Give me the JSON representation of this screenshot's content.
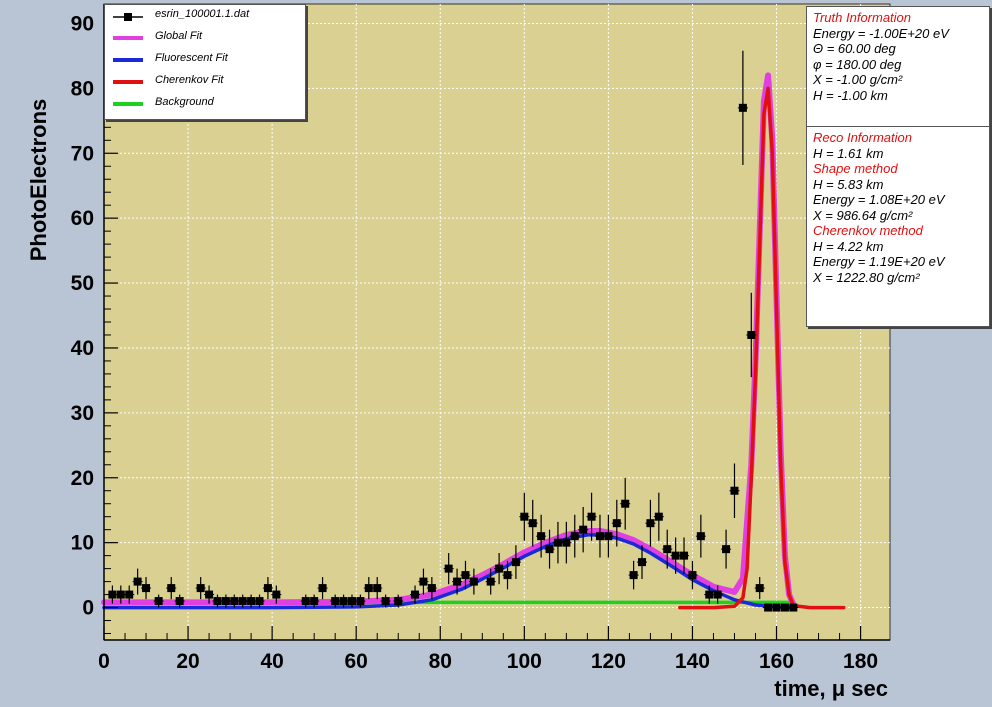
{
  "colors": {
    "frame": "#b9c4d4",
    "plot_bg": "#d9d092",
    "grid": "#ffffff",
    "data": "#000000",
    "global_fit": "#e040e0",
    "fluorescent_fit": "#1a2ad8",
    "cherenkov_fit": "#e01010",
    "background": "#20d020",
    "info_head": "#e01010"
  },
  "legend": [
    {
      "label": "esrin_100001.1.dat",
      "kind": "points",
      "color": "#000000"
    },
    {
      "label": "Global Fit",
      "kind": "line",
      "color": "#e040e0"
    },
    {
      "label": "Fluorescent Fit",
      "kind": "line",
      "color": "#1a2ad8"
    },
    {
      "label": "Cherenkov Fit",
      "kind": "line",
      "color": "#e01010"
    },
    {
      "label": "Background",
      "kind": "line",
      "color": "#20d020"
    }
  ],
  "truth_info": {
    "title": "Truth Information",
    "energy": "Energy = -1.00E+20 eV",
    "theta": "Θ = 60.00 deg",
    "phi": "φ = 180.00 deg",
    "xmax": "X = -1.00 g/cm²",
    "hmax": "H = -1.00 km"
  },
  "reco_info": {
    "title": "Reco Information",
    "hcloud": "H = 1.61 km",
    "shape_title": "Shape method",
    "shape_hmax": "H = 5.83 km",
    "shape_energy": "Energy = 1.08E+20 eV",
    "shape_xmax": "X = 986.64 g/cm²",
    "cher_title": "Cherenkov method",
    "cher_hmax": "H = 4.22 km",
    "cher_energy": "Energy = 1.19E+20 eV",
    "cher_xmax": "X = 1222.80 g/cm²"
  },
  "chart_data": {
    "type": "scatter",
    "xlabel": "time, μ sec",
    "ylabel": "PhotoElectrons",
    "xlim": [
      0,
      187
    ],
    "ylim": [
      -5,
      93
    ],
    "xticks": [
      0,
      20,
      40,
      60,
      80,
      100,
      120,
      140,
      160,
      180
    ],
    "yticks": [
      0,
      10,
      20,
      30,
      40,
      50,
      60,
      70,
      80,
      90
    ],
    "grid": true,
    "legend_position": "top-left",
    "series": [
      {
        "name": "esrin_100001.1.dat",
        "kind": "points",
        "x": [
          2,
          4,
          6,
          8,
          10,
          13,
          16,
          18,
          23,
          25,
          27,
          29,
          31,
          33,
          35,
          37,
          39,
          41,
          48,
          50,
          52,
          55,
          57,
          59,
          61,
          63,
          65,
          67,
          70,
          74,
          76,
          78,
          82,
          84,
          86,
          88,
          92,
          94,
          96,
          98,
          100,
          102,
          104,
          106,
          108,
          110,
          112,
          114,
          116,
          118,
          120,
          122,
          124,
          126,
          128,
          130,
          132,
          134,
          136,
          138,
          140,
          142,
          144,
          146,
          148,
          150,
          152,
          154,
          156,
          158,
          160,
          162,
          164
        ],
        "y": [
          2,
          2,
          2,
          4,
          3,
          1,
          3,
          1,
          3,
          2,
          1,
          1,
          1,
          1,
          1,
          1,
          3,
          2,
          1,
          1,
          3,
          1,
          1,
          1,
          1,
          3,
          3,
          1,
          1,
          2,
          4,
          3,
          6,
          4,
          5,
          4,
          4,
          6,
          5,
          7,
          14,
          13,
          11,
          9,
          10,
          10,
          11,
          12,
          14,
          11,
          11,
          13,
          16,
          5,
          7,
          13,
          14,
          9,
          8,
          8,
          5,
          11,
          2,
          2,
          9,
          18,
          77,
          42,
          3,
          0,
          0,
          0,
          0
        ],
        "err": [
          1.4,
          1.4,
          1.4,
          2,
          1.7,
          1,
          1.7,
          1,
          1.7,
          1.4,
          1,
          1,
          1,
          1,
          1,
          1,
          1.7,
          1.4,
          1,
          1,
          1.7,
          1,
          1,
          1,
          1,
          1.7,
          1.7,
          1,
          1,
          1.4,
          2,
          1.7,
          2.4,
          2,
          2.2,
          2,
          2,
          2.4,
          2.2,
          2.6,
          3.7,
          3.6,
          3.3,
          3,
          3.2,
          3.2,
          3.3,
          3.5,
          3.7,
          3.3,
          3.3,
          3.6,
          4,
          2.2,
          2.6,
          3.6,
          3.7,
          3,
          2.8,
          2.8,
          2.2,
          3.3,
          1.4,
          1.4,
          3,
          4.2,
          8.8,
          6.5,
          1.7,
          0,
          0,
          0,
          0
        ]
      },
      {
        "name": "Global Fit",
        "kind": "line",
        "x": [
          0,
          20,
          40,
          60,
          70,
          78,
          85,
          90,
          95,
          100,
          105,
          110,
          115,
          118,
          122,
          126,
          130,
          135,
          140,
          145,
          150,
          152,
          154,
          155,
          156,
          157,
          158,
          159,
          160,
          161,
          162,
          163,
          164
        ],
        "y": [
          0.8,
          0.8,
          0.8,
          0.9,
          1.2,
          2.0,
          3.5,
          5.0,
          6.7,
          8.5,
          10.0,
          11.2,
          11.8,
          11.8,
          11.3,
          10.4,
          9.0,
          7.0,
          5.0,
          3.2,
          2.4,
          4.5,
          22,
          38,
          58,
          78,
          82,
          72,
          48,
          24,
          8,
          2,
          0.5
        ]
      },
      {
        "name": "Fluorescent Fit",
        "kind": "line",
        "x": [
          0,
          20,
          40,
          60,
          70,
          78,
          85,
          90,
          95,
          100,
          105,
          110,
          115,
          118,
          122,
          126,
          130,
          135,
          140,
          145,
          150,
          155,
          160,
          164
        ],
        "y": [
          0,
          0,
          0,
          0.1,
          0.4,
          1.2,
          2.8,
          4.4,
          6.1,
          7.9,
          9.4,
          10.6,
          11.2,
          11.2,
          10.7,
          9.8,
          8.4,
          6.4,
          4.3,
          2.6,
          1.2,
          0.4,
          0.1,
          0
        ]
      },
      {
        "name": "Cherenkov Fit",
        "kind": "line",
        "x": [
          137,
          145,
          150,
          152,
          153,
          154,
          155,
          156,
          157,
          158,
          159,
          160,
          161,
          162,
          163,
          164,
          168,
          176
        ],
        "y": [
          0,
          0,
          0.2,
          1.5,
          6,
          20,
          36,
          56,
          76,
          80,
          70,
          46,
          22,
          7,
          2,
          0.3,
          0,
          0
        ]
      },
      {
        "name": "Background",
        "kind": "line",
        "x": [
          0,
          40,
          80,
          120,
          150,
          158,
          164
        ],
        "y": [
          0.8,
          0.8,
          0.8,
          0.8,
          0.8,
          0.8,
          0.8
        ]
      }
    ]
  }
}
